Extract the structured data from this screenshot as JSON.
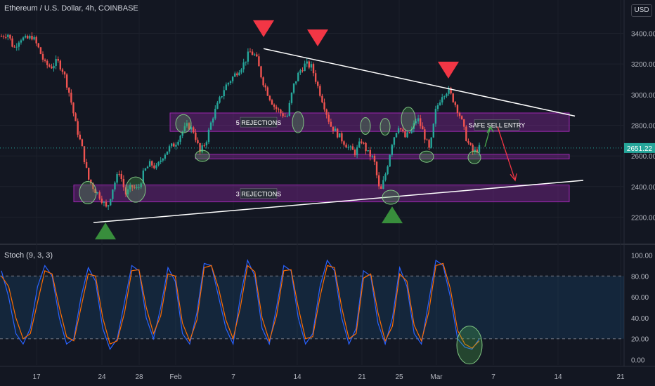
{
  "header": {
    "title": "Ethereum / U.S. Dollar, 4h, COINBASE",
    "currency": "USD"
  },
  "stoch_label": "Stoch (9, 3, 3)",
  "current_price": "2651.22",
  "chart_data": [
    {
      "type": "candlestick",
      "title": "Ethereum / U.S. Dollar, 4h, COINBASE",
      "ylim": [
        2060,
        3480
      ],
      "y_ticks": [
        "2200.00",
        "2400.00",
        "2600.00",
        "2800.00",
        "3000.00",
        "3200.00",
        "3400.00"
      ],
      "y_tick_values": [
        2200,
        2400,
        2600,
        2800,
        3000,
        3200,
        3400
      ],
      "x_ticks": [
        "17",
        "24",
        "28",
        "Feb",
        "7",
        "14",
        "21",
        "25",
        "Mar",
        "7",
        "14",
        "21"
      ],
      "price_path": [
        3380,
        3400,
        3300,
        3370,
        3360,
        3380,
        3300,
        3200,
        3180,
        3220,
        3150,
        3000,
        2800,
        2650,
        2450,
        2380,
        2330,
        2250,
        2400,
        2500,
        2350,
        2400,
        2380,
        2500,
        2550,
        2520,
        2600,
        2650,
        2680,
        2750,
        2800,
        2760,
        2620,
        2700,
        2850,
        2950,
        3050,
        3100,
        3150,
        3200,
        3280,
        3250,
        3100,
        3000,
        2920,
        2880,
        2850,
        3050,
        3150,
        3200,
        3180,
        3050,
        2930,
        2800,
        2750,
        2700,
        2650,
        2620,
        2700,
        2620,
        2580,
        2350,
        2500,
        2700,
        2800,
        2720,
        2760,
        2850,
        2750,
        2630,
        2900,
        3000,
        3030,
        2950,
        2850,
        2700,
        2620,
        2651
      ],
      "zones": [
        {
          "label": "5 REJECTIONS",
          "low": 2760,
          "high": 2880
        },
        {
          "label": "",
          "low": 2580,
          "high": 2610
        },
        {
          "label": "3 REJECTIONS",
          "low": 2300,
          "high": 2410
        }
      ],
      "annotations": [
        "SAFE SELL ENTRY"
      ],
      "last_price": 2651.22
    },
    {
      "type": "line",
      "title": "Stoch (9, 3, 3)",
      "ylim": [
        -5,
        105
      ],
      "y_ticks": [
        "100.00",
        "80.00",
        "60.00",
        "40.00",
        "20.00",
        "0.00"
      ],
      "y_tick_values": [
        100,
        80,
        60,
        40,
        20,
        0
      ],
      "bands": [
        20,
        80
      ],
      "series": [
        {
          "name": "%K",
          "color": "#2962ff",
          "values": [
            85,
            60,
            25,
            15,
            30,
            70,
            90,
            80,
            40,
            15,
            20,
            60,
            88,
            75,
            30,
            10,
            20,
            55,
            90,
            85,
            40,
            20,
            50,
            88,
            75,
            25,
            15,
            45,
            92,
            90,
            60,
            30,
            15,
            60,
            95,
            80,
            30,
            15,
            50,
            90,
            85,
            40,
            15,
            25,
            70,
            95,
            85,
            40,
            15,
            30,
            85,
            80,
            35,
            15,
            40,
            88,
            70,
            25,
            15,
            55,
            95,
            90,
            60,
            20,
            12,
            10,
            20
          ]
        },
        {
          "name": "%D",
          "color": "#ff6d00",
          "values": [
            80,
            70,
            40,
            20,
            25,
            55,
            85,
            82,
            50,
            22,
            18,
            50,
            82,
            80,
            40,
            15,
            18,
            45,
            85,
            86,
            50,
            25,
            42,
            82,
            80,
            35,
            18,
            38,
            88,
            90,
            68,
            38,
            20,
            50,
            90,
            84,
            40,
            18,
            42,
            85,
            86,
            50,
            20,
            22,
            60,
            90,
            88,
            50,
            20,
            25,
            78,
            82,
            45,
            18,
            32,
            82,
            75,
            33,
            18,
            45,
            90,
            92,
            68,
            28,
            15,
            11,
            18
          ]
        }
      ]
    }
  ]
}
